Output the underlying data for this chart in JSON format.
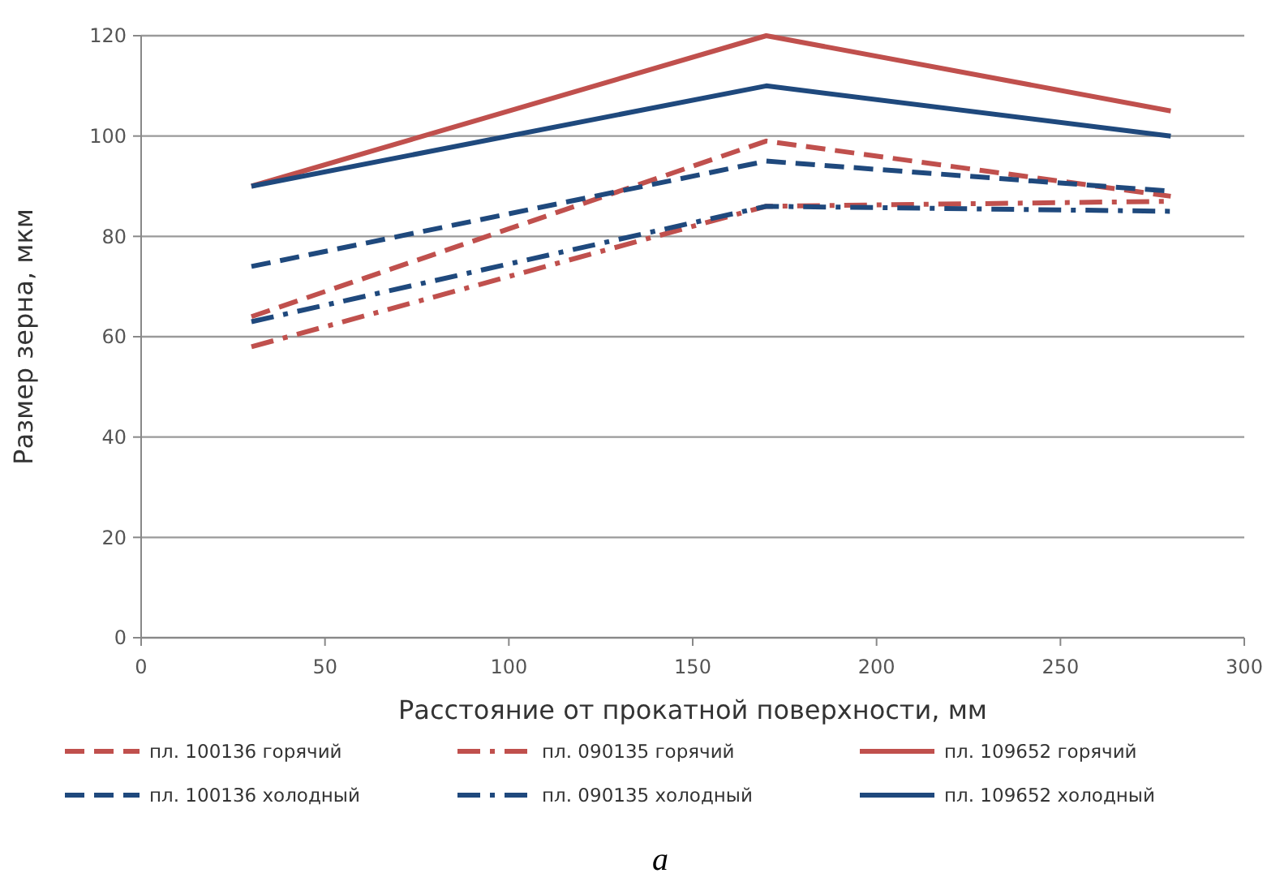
{
  "chart_data": {
    "type": "line",
    "xlabel": "Расстояние от прокатной поверхности, мм",
    "ylabel": "Размер зерна, мкм",
    "x": [
      30,
      170,
      280
    ],
    "series": [
      {
        "name": "пл. 100136 горячий",
        "color": "#c0504d",
        "line_style": "dashed",
        "values": [
          64,
          99,
          88
        ]
      },
      {
        "name": "пл. 090135 горячий",
        "color": "#c0504d",
        "line_style": "dashdot",
        "values": [
          58,
          86,
          87
        ]
      },
      {
        "name": "пл. 109652 горячий",
        "color": "#c0504d",
        "line_style": "solid",
        "values": [
          90,
          120,
          105
        ]
      },
      {
        "name": "пл. 100136 холодный",
        "color": "#1f497d",
        "line_style": "dashed",
        "values": [
          74,
          95,
          89
        ]
      },
      {
        "name": "пл. 090135 холодный",
        "color": "#1f497d",
        "line_style": "dashdot",
        "values": [
          63,
          86,
          85
        ]
      },
      {
        "name": "пл. 109652 холодный",
        "color": "#1f497d",
        "line_style": "solid",
        "values": [
          90,
          110,
          100
        ]
      }
    ],
    "xlim": [
      0,
      300
    ],
    "xticks": [
      0,
      50,
      100,
      150,
      200,
      250,
      300
    ],
    "ylim": [
      0,
      120
    ],
    "yticks": [
      0,
      20,
      40,
      60,
      80,
      100,
      120
    ],
    "grid": "y",
    "legend": "bottom",
    "marker": "none",
    "annotations": [
      "a"
    ]
  }
}
